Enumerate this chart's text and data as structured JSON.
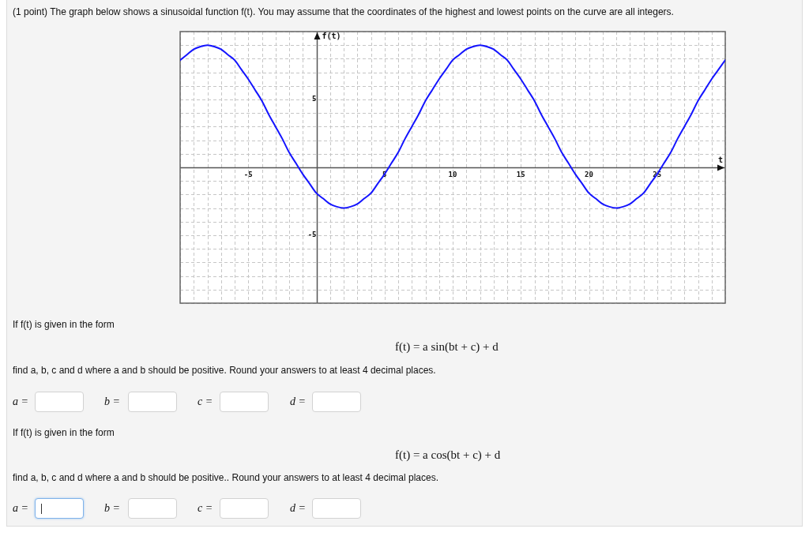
{
  "chart_data": {
    "type": "line",
    "title": "(1 point) The graph below shows a sinusoidal function f(t). You may assume that the coordinates of the highest and lowest points on the curve are all integers.",
    "xlabel": "t",
    "ylabel": "f(t)",
    "x": [
      -10,
      -9.5,
      -9,
      -8.5,
      -8,
      -7.5,
      -7,
      -6.5,
      -6,
      -5.5,
      -5,
      -4.5,
      -4,
      -3.5,
      -3,
      -2.5,
      -2,
      -1.5,
      -1,
      -0.5,
      0,
      0.5,
      1,
      1.5,
      2,
      2.5,
      3,
      3.5,
      4,
      4.5,
      5,
      5.5,
      6,
      6.5,
      7,
      7.5,
      8,
      8.5,
      9,
      9.5,
      10,
      10.5,
      11,
      11.5,
      12,
      12.5,
      13,
      13.5,
      14,
      14.5,
      15,
      15.5,
      16,
      16.5,
      17,
      17.5,
      18,
      18.5,
      19,
      19.5,
      20,
      20.5,
      21,
      21.5,
      22,
      22.5,
      23,
      23.5,
      24,
      24.5,
      25,
      25.5,
      26,
      26.5,
      27,
      27.5,
      28,
      28.5,
      29,
      29.5,
      30
    ],
    "series": [
      {
        "color": "#1414ff",
        "values": [
          7.9,
          8.3,
          8.7,
          8.9,
          9,
          8.9,
          8.7,
          8.3,
          7.9,
          7.2,
          6.5,
          5.7,
          4.9,
          3.9,
          3,
          2.1,
          1.1,
          0.3,
          -0.5,
          -1.2,
          -1.9,
          -2.3,
          -2.7,
          -2.9,
          -3,
          -2.9,
          -2.7,
          -2.3,
          -1.9,
          -1.2,
          -0.5,
          0.3,
          1.1,
          2.1,
          3,
          3.9,
          4.9,
          5.7,
          6.5,
          7.2,
          7.9,
          8.3,
          8.7,
          8.9,
          9,
          8.9,
          8.7,
          8.3,
          7.9,
          7.2,
          6.5,
          5.7,
          4.9,
          3.9,
          3,
          2.1,
          1.1,
          0.3,
          -0.5,
          -1.2,
          -1.9,
          -2.3,
          -2.7,
          -2.9,
          -3,
          -2.9,
          -2.7,
          -2.3,
          -1.9,
          -1.2,
          -0.5,
          0.3,
          1.1,
          2.1,
          3,
          3.9,
          4.9,
          5.7,
          6.5,
          7.2,
          7.9
        ]
      }
    ],
    "xlim": [
      -10,
      30
    ],
    "ylim": [
      -10,
      10
    ],
    "xticks": [
      {
        "value": -10,
        "label": null
      },
      {
        "value": -9,
        "label": null
      },
      {
        "value": -8,
        "label": null
      },
      {
        "value": -7,
        "label": null
      },
      {
        "value": -6,
        "label": null
      },
      -5,
      {
        "value": -4,
        "label": null
      },
      {
        "value": -3,
        "label": null
      },
      {
        "value": -2,
        "label": null
      },
      {
        "value": -1,
        "label": null
      },
      {
        "value": 0,
        "label": null
      },
      {
        "value": 1,
        "label": null
      },
      {
        "value": 2,
        "label": null
      },
      {
        "value": 3,
        "label": null
      },
      {
        "value": 4,
        "label": null
      },
      5,
      {
        "value": 6,
        "label": null
      },
      {
        "value": 7,
        "label": null
      },
      {
        "value": 8,
        "label": null
      },
      {
        "value": 9,
        "label": null
      },
      10,
      {
        "value": 11,
        "label": null
      },
      {
        "value": 12,
        "label": null
      },
      {
        "value": 13,
        "label": null
      },
      {
        "value": 14,
        "label": null
      },
      15,
      {
        "value": 16,
        "label": null
      },
      {
        "value": 17,
        "label": null
      },
      {
        "value": 18,
        "label": null
      },
      {
        "value": 19,
        "label": null
      },
      20,
      {
        "value": 21,
        "label": null
      },
      {
        "value": 22,
        "label": null
      },
      {
        "value": 23,
        "label": null
      },
      {
        "value": 24,
        "label": null
      },
      25,
      {
        "value": 26,
        "label": null
      },
      {
        "value": 27,
        "label": null
      },
      {
        "value": 28,
        "label": null
      },
      {
        "value": 29,
        "label": null
      },
      {
        "value": 30,
        "label": null
      }
    ],
    "yticks": [
      {
        "value": -10,
        "label": null
      },
      {
        "value": -9,
        "label": null
      },
      {
        "value": -8,
        "label": null
      },
      {
        "value": -7,
        "label": null
      },
      {
        "value": -6,
        "label": null
      },
      -5,
      {
        "value": -4,
        "label": null
      },
      {
        "value": -3,
        "label": null
      },
      {
        "value": -2,
        "label": null
      },
      {
        "value": -1,
        "label": null
      },
      {
        "value": 0,
        "label": null
      },
      {
        "value": 1,
        "label": null
      },
      {
        "value": 2,
        "label": null
      },
      {
        "value": 3,
        "label": null
      },
      {
        "value": 4,
        "label": null
      },
      5,
      {
        "value": 6,
        "label": null
      },
      {
        "value": 7,
        "label": null
      },
      {
        "value": 8,
        "label": null
      },
      {
        "value": 9,
        "label": null
      },
      {
        "value": 10,
        "label": null
      }
    ],
    "grid": true,
    "annotations": [
      "If f(t) is given in the form",
      "f(t) = a sin(bt + c) + d",
      "find a, b, c and d where a and b should be positive. Round your answers to at least 4 decimal places.",
      "a =",
      "b =",
      "c =",
      "d =",
      "If f(t) is given in the form",
      "f(t) = a cos(bt + c) + d",
      "find a, b, c and d where a and b should be positive.. Round your answers to at least 4 decimal places.",
      "a =",
      "b =",
      "c =",
      "d ="
    ]
  }
}
